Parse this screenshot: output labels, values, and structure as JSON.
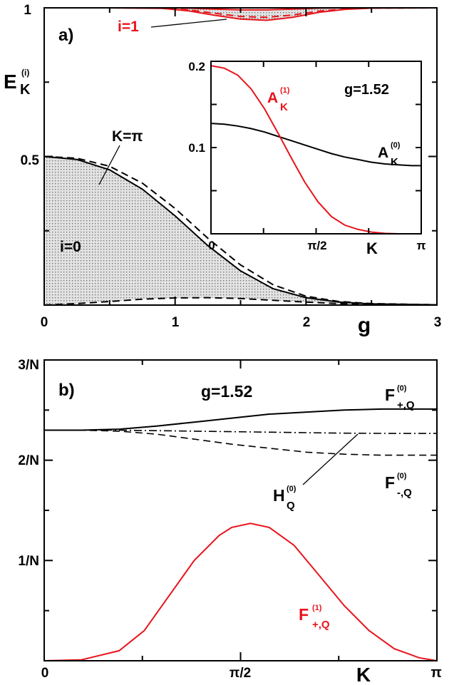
{
  "chart_data": [
    {
      "type": "area",
      "panel_label": "a)",
      "xlabel": "g",
      "ylabel": {
        "main": "E",
        "sup": "(i)",
        "sub": "K"
      },
      "xlim": [
        0,
        3
      ],
      "ylim": [
        0,
        1
      ],
      "x_ticks": [
        "0",
        "1",
        "2",
        "3"
      ],
      "y_ticks": [
        "0.5",
        "1"
      ],
      "grid": false,
      "colors": {
        "band0": "#000000",
        "band1": "#e8141b",
        "fill": "#d6d6d6"
      },
      "band_i0": {
        "label": "i=0",
        "upper_label": "K=π",
        "g": [
          0,
          0.25,
          0.5,
          0.75,
          1.0,
          1.25,
          1.5,
          1.75,
          2.0,
          2.25,
          2.5,
          3.0
        ],
        "solid": [
          0.5,
          0.49,
          0.455,
          0.39,
          0.3,
          0.2,
          0.115,
          0.055,
          0.025,
          0.01,
          0.004,
          0.001
        ],
        "upper_dashed": [
          0.5,
          0.494,
          0.467,
          0.41,
          0.325,
          0.225,
          0.135,
          0.068,
          0.03,
          0.012,
          0.005,
          0.001
        ],
        "lower_dashed": [
          0.0,
          0.005,
          0.012,
          0.02,
          0.024,
          0.025,
          0.022,
          0.016,
          0.01,
          0.005,
          0.002,
          0.0
        ]
      },
      "band_i1": {
        "label": "i=1",
        "g": [
          0,
          0.5,
          0.9,
          1.1,
          1.3,
          1.5,
          1.7,
          1.9,
          2.1,
          2.3,
          2.5,
          3.0
        ],
        "solid_lower": [
          1.0,
          1.0,
          0.998,
          0.99,
          0.975,
          0.962,
          0.958,
          0.968,
          0.985,
          0.995,
          0.999,
          1.0
        ],
        "dashed": [
          1.0,
          1.0,
          0.999,
          0.993,
          0.982,
          0.971,
          0.968,
          0.976,
          0.989,
          0.996,
          0.999,
          1.0
        ],
        "upper": [
          1.0,
          1.0,
          1.0,
          0.999,
          0.996,
          0.993,
          0.993,
          0.996,
          0.999,
          1.0,
          1.0,
          1.0
        ]
      },
      "inset": {
        "type": "line",
        "annotation": "g=1.52",
        "xlabel": "K",
        "x_ticks": [
          "0",
          "π/2",
          "π"
        ],
        "y_ticks": [
          "0.1",
          "0.2"
        ],
        "xlim": [
          0,
          3.1416
        ],
        "ylim": [
          0,
          0.2
        ],
        "series": [
          {
            "name": "A_K^(1)",
            "main": "A",
            "sup": "(1)",
            "sub": "K",
            "color": "#e8141b",
            "x": [
              0,
              0.2,
              0.4,
              0.6,
              0.8,
              1.0,
              1.2,
              1.4,
              1.6,
              1.8,
              2.0,
              2.2,
              2.4,
              2.6,
              2.8,
              3.0,
              3.1416
            ],
            "values": [
              0.195,
              0.192,
              0.184,
              0.168,
              0.145,
              0.117,
              0.088,
              0.06,
              0.037,
              0.02,
              0.01,
              0.005,
              0.002,
              0.0005,
              0.0,
              0.0,
              0.0
            ]
          },
          {
            "name": "A_K^(0)",
            "main": "A",
            "sup": "(0)",
            "sub": "K",
            "color": "#000000",
            "x": [
              0,
              0.2,
              0.4,
              0.6,
              0.8,
              1.0,
              1.2,
              1.4,
              1.6,
              1.8,
              2.0,
              2.2,
              2.4,
              2.6,
              2.8,
              3.0,
              3.1416
            ],
            "values": [
              0.128,
              0.127,
              0.125,
              0.122,
              0.118,
              0.113,
              0.108,
              0.103,
              0.098,
              0.093,
              0.089,
              0.086,
              0.083,
              0.081,
              0.08,
              0.079,
              0.079
            ]
          }
        ]
      }
    },
    {
      "type": "line",
      "panel_label": "b)",
      "annotation": "g=1.52",
      "xlabel": "K",
      "x_ticks": [
        "0",
        "π/2",
        "π"
      ],
      "y_ticks": [
        "1/N",
        "2/N",
        "3/N"
      ],
      "xlim": [
        0,
        3.1416
      ],
      "ylim": [
        0,
        3
      ],
      "grid": false,
      "series": [
        {
          "name": "F_{+,Q}^(0)",
          "main": "F",
          "sup": "(0)",
          "sub": "+,Q",
          "color": "#000000",
          "style": "solid",
          "x": [
            0,
            0.3,
            0.6,
            0.9,
            1.2,
            1.5,
            1.8,
            2.1,
            2.4,
            2.7,
            3.0,
            3.1416
          ],
          "values": [
            2.3,
            2.3,
            2.31,
            2.34,
            2.38,
            2.42,
            2.46,
            2.48,
            2.5,
            2.51,
            2.51,
            2.51
          ]
        },
        {
          "name": "H_Q^(0)",
          "main": "H",
          "sup": "(0)",
          "sub": "Q",
          "color": "#000000",
          "style": "dashdot",
          "x": [
            0,
            0.3,
            0.6,
            0.9,
            1.2,
            1.5,
            1.8,
            2.1,
            2.4,
            2.7,
            3.0,
            3.1416
          ],
          "values": [
            2.3,
            2.3,
            2.3,
            2.295,
            2.29,
            2.285,
            2.28,
            2.275,
            2.27,
            2.268,
            2.267,
            2.267
          ]
        },
        {
          "name": "F_{-,Q}^(0)",
          "main": "F",
          "sup": "(0)",
          "sub": "-,Q",
          "color": "#000000",
          "style": "dashed",
          "x": [
            0,
            0.3,
            0.6,
            0.9,
            1.2,
            1.5,
            1.8,
            2.1,
            2.4,
            2.7,
            3.0,
            3.1416
          ],
          "values": [
            2.3,
            2.3,
            2.29,
            2.26,
            2.21,
            2.16,
            2.12,
            2.08,
            2.06,
            2.05,
            2.05,
            2.05
          ]
        },
        {
          "name": "F_{+,Q}^(1)",
          "main": "F",
          "sup": "(1)",
          "sub": "+,Q",
          "color": "#e8141b",
          "style": "solid",
          "x": [
            0,
            0.3,
            0.6,
            0.8,
            1.0,
            1.2,
            1.4,
            1.5,
            1.65,
            1.8,
            2.0,
            2.2,
            2.4,
            2.6,
            2.8,
            3.0,
            3.1416
          ],
          "values": [
            0,
            0.01,
            0.1,
            0.3,
            0.65,
            1.0,
            1.25,
            1.33,
            1.37,
            1.33,
            1.15,
            0.85,
            0.55,
            0.3,
            0.12,
            0.03,
            0
          ]
        }
      ]
    }
  ]
}
